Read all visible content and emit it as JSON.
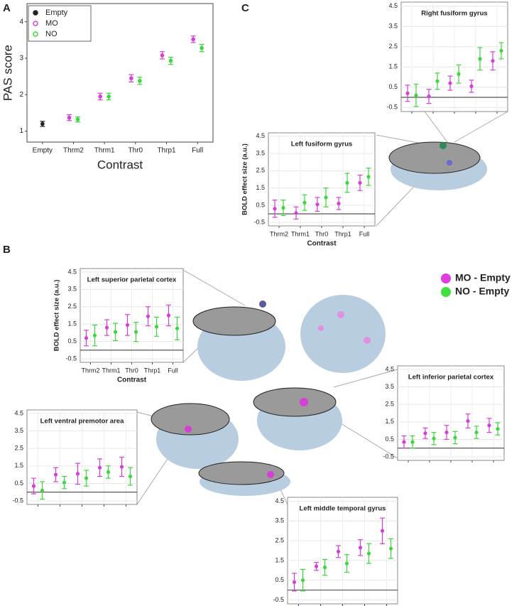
{
  "panel_labels": [
    "A",
    "B",
    "C"
  ],
  "legend": {
    "entries": [
      {
        "label": "MO - Empty",
        "color": "#e03fe0"
      },
      {
        "label": "NO - Empty",
        "color": "#3fe03f"
      }
    ]
  },
  "chart_data": [
    {
      "type": "errorbar",
      "categories": [
        "Empty",
        "Thrm2",
        "Thrm1",
        "Thr0",
        "Thrp1",
        "Full"
      ],
      "series": [
        {
          "name": "Empty",
          "color": "#222222",
          "values": [
            1.2,
            null,
            null,
            null,
            null,
            null
          ],
          "errors": [
            0.07,
            null,
            null,
            null,
            null,
            null
          ]
        },
        {
          "name": "MO",
          "color": "#d63fd6",
          "values": [
            null,
            1.37,
            1.95,
            2.45,
            3.08,
            3.52
          ],
          "errors": [
            null,
            0.08,
            0.09,
            0.1,
            0.1,
            0.09
          ]
        },
        {
          "name": "NO",
          "color": "#3ed63e",
          "values": [
            null,
            1.32,
            1.95,
            2.38,
            2.93,
            3.28
          ],
          "errors": [
            null,
            0.07,
            0.09,
            0.1,
            0.1,
            0.1
          ]
        }
      ],
      "xlabel": "Contrast",
      "ylabel": "PAS score",
      "ylim": [
        0.7,
        4.5
      ],
      "yticks": [
        1,
        2,
        3,
        4
      ],
      "grid": false,
      "legend": true
    },
    {
      "type": "errorbar",
      "title": "Right fusiform gyrus",
      "categories": [
        null,
        null,
        null,
        null,
        null
      ],
      "series": [
        {
          "color": "#d63fd6",
          "values": [
            0.2,
            0.05,
            0.7,
            0.55,
            1.8
          ],
          "errors": [
            0.4,
            0.35,
            0.35,
            0.3,
            0.45
          ]
        },
        {
          "color": "#3ed63e",
          "values": [
            0.1,
            0.8,
            1.15,
            1.9,
            2.3
          ],
          "errors": [
            0.55,
            0.4,
            0.45,
            0.55,
            0.4
          ]
        }
      ],
      "ylim": [
        -0.7,
        4.7
      ],
      "yticks": [
        -0.5,
        0.5,
        1.5,
        2.5,
        3.5,
        4.5
      ],
      "grid": true,
      "reference_line": 0
    },
    {
      "type": "errorbar",
      "title": "Left fusiform gyrus",
      "categories": [
        "Thrm2",
        "Thrm1",
        "Thr0",
        "Thrp1",
        "Full"
      ],
      "series": [
        {
          "color": "#d63fd6",
          "values": [
            0.3,
            0.05,
            0.55,
            0.6,
            1.8
          ],
          "errors": [
            0.5,
            0.35,
            0.4,
            0.35,
            0.45
          ]
        },
        {
          "color": "#3ed63e",
          "values": [
            0.35,
            0.65,
            0.95,
            1.8,
            2.15
          ],
          "errors": [
            0.45,
            0.45,
            0.55,
            0.55,
            0.5
          ]
        }
      ],
      "xlabel": "Contrast",
      "ylabel": "BOLD effect size (a.u.)",
      "ylim": [
        -0.7,
        4.7
      ],
      "yticks": [
        -0.5,
        0.5,
        1.5,
        2.5,
        3.5,
        4.5
      ],
      "grid": true,
      "reference_line": 0
    },
    {
      "type": "errorbar",
      "title": "Left superior parietal cortex",
      "categories": [
        "Thrm2",
        "Thrm1",
        "Thr0",
        "Thrp1",
        "Full"
      ],
      "series": [
        {
          "color": "#d63fd6",
          "values": [
            0.7,
            1.3,
            1.45,
            1.95,
            2.0
          ],
          "errors": [
            0.45,
            0.45,
            0.6,
            0.55,
            0.6
          ]
        },
        {
          "color": "#3ed63e",
          "values": [
            0.85,
            1.05,
            1.05,
            1.35,
            1.25
          ],
          "errors": [
            0.6,
            0.5,
            0.55,
            0.55,
            0.65
          ]
        }
      ],
      "xlabel": "Contrast",
      "ylabel": "BOLD effect size (a.u.)",
      "ylim": [
        -0.7,
        4.7
      ],
      "yticks": [
        -0.5,
        0.5,
        1.5,
        2.5,
        3.5,
        4.5
      ],
      "grid": true,
      "reference_line": 0
    },
    {
      "type": "errorbar",
      "title": "Left inferior parietal cortex",
      "categories": [
        null,
        null,
        null,
        null,
        null
      ],
      "series": [
        {
          "color": "#d63fd6",
          "values": [
            0.35,
            0.85,
            0.9,
            1.55,
            1.3
          ],
          "errors": [
            0.35,
            0.3,
            0.4,
            0.4,
            0.4
          ]
        },
        {
          "color": "#3ed63e",
          "values": [
            0.35,
            0.55,
            0.6,
            0.9,
            1.1
          ],
          "errors": [
            0.35,
            0.35,
            0.35,
            0.35,
            0.35
          ]
        }
      ],
      "ylim": [
        -0.7,
        4.7
      ],
      "yticks": [
        -0.5,
        0.5,
        1.5,
        2.5,
        3.5,
        4.5
      ],
      "grid": true,
      "reference_line": 0
    },
    {
      "type": "errorbar",
      "title": "Left ventral premotor area",
      "categories": [
        null,
        null,
        null,
        null,
        null
      ],
      "series": [
        {
          "color": "#d63fd6",
          "values": [
            0.35,
            1.0,
            1.05,
            1.4,
            1.45
          ],
          "errors": [
            0.45,
            0.4,
            0.6,
            0.5,
            0.55
          ]
        },
        {
          "color": "#3ed63e",
          "values": [
            0.1,
            0.55,
            0.8,
            1.15,
            0.9
          ],
          "errors": [
            0.5,
            0.35,
            0.45,
            0.35,
            0.5
          ]
        }
      ],
      "ylim": [
        -0.7,
        4.7
      ],
      "yticks": [
        -0.5,
        0.5,
        1.5,
        2.5,
        3.5,
        4.5
      ],
      "grid": true,
      "reference_line": 0
    },
    {
      "type": "errorbar",
      "title": "Left middle temporal gyrus",
      "categories": [
        null,
        null,
        null,
        null,
        null
      ],
      "series": [
        {
          "color": "#d63fd6",
          "values": [
            0.4,
            1.2,
            1.95,
            2.15,
            3.0
          ],
          "errors": [
            0.45,
            0.2,
            0.3,
            0.4,
            0.65
          ]
        },
        {
          "color": "#3ed63e",
          "values": [
            0.5,
            1.15,
            1.35,
            1.85,
            2.1
          ],
          "errors": [
            0.55,
            0.4,
            0.45,
            0.5,
            0.5
          ]
        }
      ],
      "ylim": [
        -0.7,
        4.7
      ],
      "yticks": [
        -0.5,
        0.5,
        1.5,
        2.5,
        3.5,
        4.5
      ],
      "grid": true,
      "reference_line": 0
    }
  ]
}
